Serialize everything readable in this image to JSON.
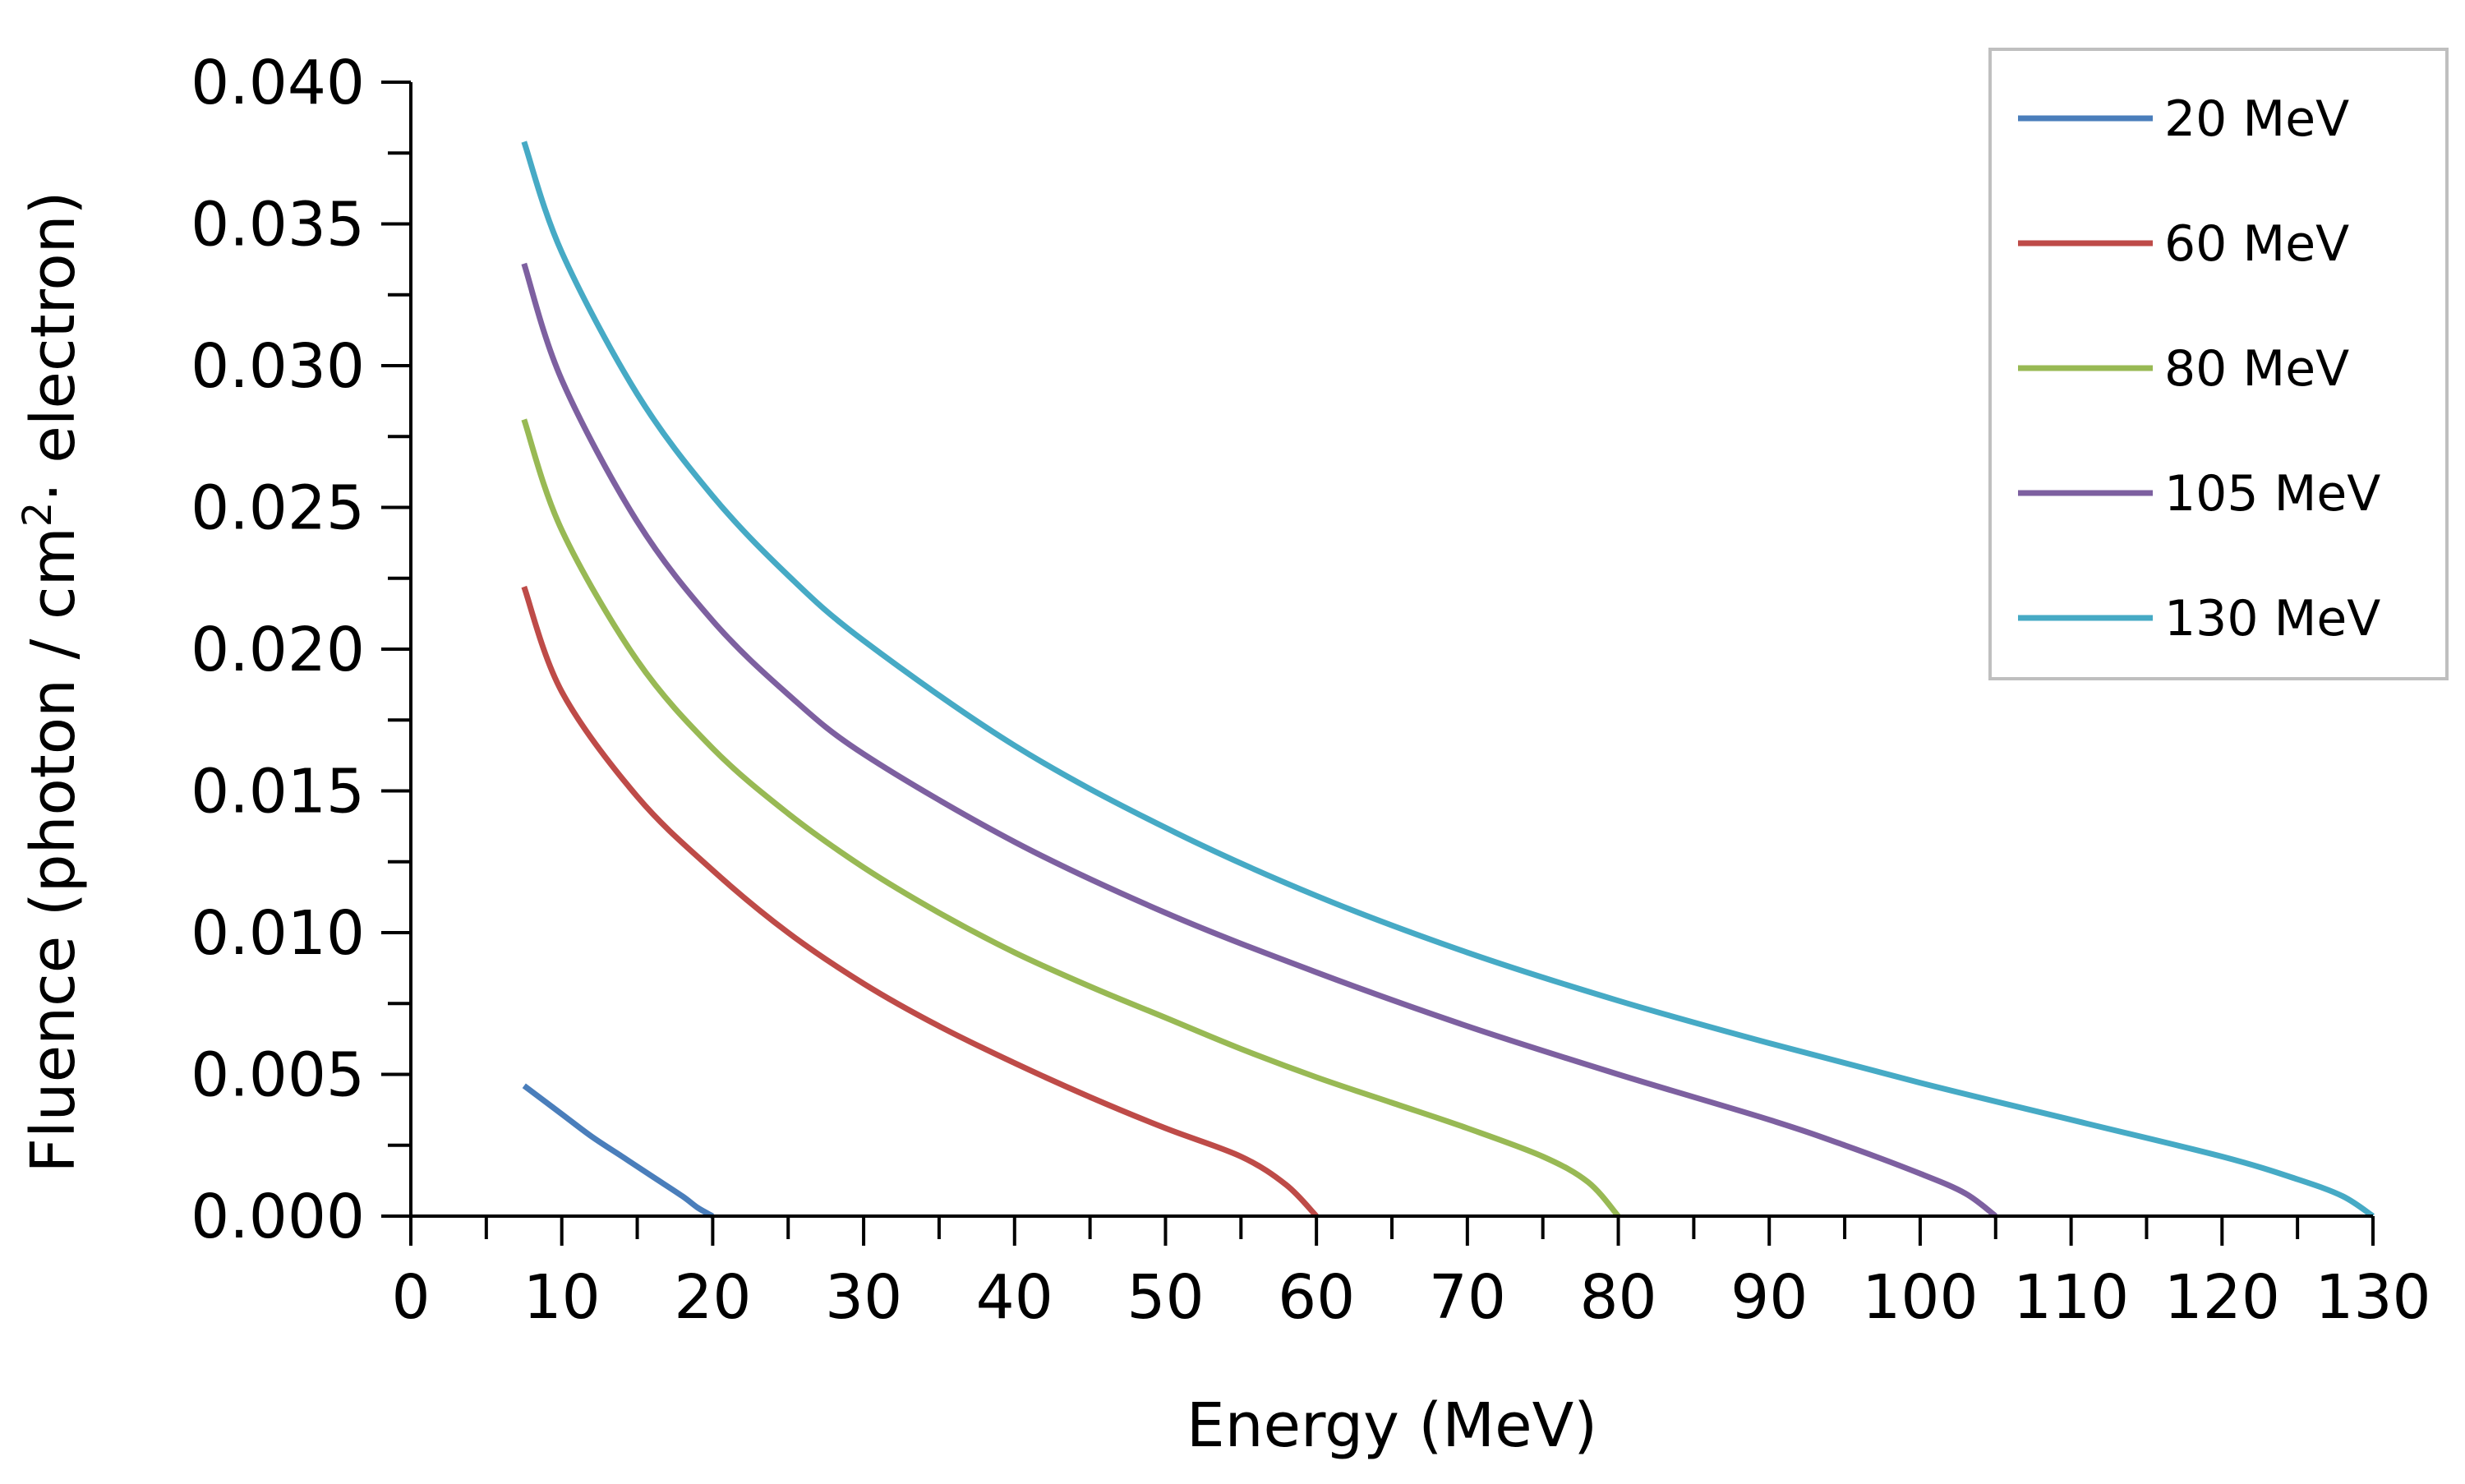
{
  "chart_data": {
    "type": "line",
    "title": "",
    "xlabel": "Energy (MeV)",
    "ylabel_parts": {
      "before": "Fluence (photon  / cm",
      "superscript": "2",
      "after": "· electron)"
    },
    "xlim": [
      0,
      130
    ],
    "ylim": [
      0,
      0.04
    ],
    "x_ticks": [
      0,
      10,
      20,
      30,
      40,
      50,
      60,
      70,
      80,
      90,
      100,
      110,
      120,
      130
    ],
    "x_tick_labels": [
      "0",
      "10",
      "20",
      "30",
      "40",
      "50",
      "60",
      "70",
      "80",
      "90",
      "100",
      "110",
      "120",
      "130"
    ],
    "x_minor_step": 5,
    "y_ticks": [
      0,
      0.005,
      0.01,
      0.015,
      0.02,
      0.025,
      0.03,
      0.035,
      0.04
    ],
    "y_tick_labels": [
      "0.000",
      "0.005",
      "0.010",
      "0.015",
      "0.020",
      "0.025",
      "0.030",
      "0.035",
      "0.040"
    ],
    "y_minor_step": 0.0025,
    "grid": false,
    "legend_position": "top-right",
    "series": [
      {
        "name": "20 MeV",
        "color": "#4a7ebb",
        "x": [
          7.5,
          10,
          12,
          14,
          16,
          18,
          19,
          20
        ],
        "y": [
          0.0046,
          0.0036,
          0.0028,
          0.0021,
          0.0014,
          0.0007,
          0.0003,
          0.0
        ]
      },
      {
        "name": "60 MeV",
        "color": "#be4b48",
        "x": [
          7.5,
          10,
          15,
          20,
          25,
          30,
          35,
          40,
          45,
          50,
          55,
          58,
          60
        ],
        "y": [
          0.0222,
          0.0185,
          0.0148,
          0.0122,
          0.01,
          0.0082,
          0.0067,
          0.0054,
          0.0042,
          0.0031,
          0.0021,
          0.0011,
          0.0
        ]
      },
      {
        "name": "80 MeV",
        "color": "#98b954",
        "x": [
          7.5,
          10,
          15,
          20,
          25,
          30,
          35,
          40,
          45,
          50,
          55,
          60,
          65,
          70,
          75,
          78,
          80
        ],
        "y": [
          0.0281,
          0.0242,
          0.0196,
          0.0165,
          0.0142,
          0.0123,
          0.0107,
          0.0093,
          0.0081,
          0.007,
          0.0059,
          0.0049,
          0.004,
          0.0031,
          0.0021,
          0.0012,
          0.0
        ]
      },
      {
        "name": "105 MeV",
        "color": "#7d60a0",
        "x": [
          7.5,
          10,
          15,
          20,
          25,
          30,
          40,
          50,
          60,
          70,
          80,
          90,
          95,
          100,
          103,
          105
        ],
        "y": [
          0.0336,
          0.0295,
          0.0245,
          0.021,
          0.0184,
          0.0163,
          0.0132,
          0.0107,
          0.0086,
          0.0067,
          0.005,
          0.0034,
          0.0025,
          0.0015,
          0.0008,
          0.0
        ]
      },
      {
        "name": "130 MeV",
        "color": "#46aac5",
        "x": [
          7.5,
          10,
          15,
          20,
          25,
          30,
          40,
          50,
          60,
          70,
          80,
          90,
          100,
          110,
          120,
          125,
          128,
          130
        ],
        "y": [
          0.0379,
          0.034,
          0.029,
          0.0254,
          0.0226,
          0.0203,
          0.0166,
          0.0137,
          0.0113,
          0.0093,
          0.0076,
          0.0061,
          0.0047,
          0.0034,
          0.0021,
          0.0013,
          0.0007,
          0.0
        ]
      }
    ]
  }
}
